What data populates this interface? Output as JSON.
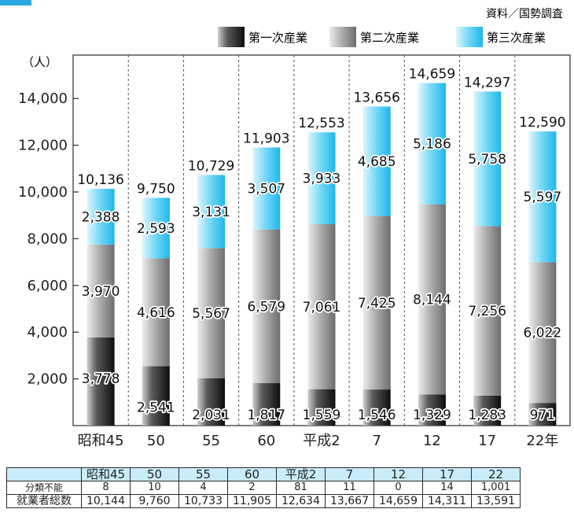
{
  "source_note": "資料／国勢調査",
  "legend": [
    "第一次産業",
    "第二次産業",
    "第三次産業"
  ],
  "y_unit": "（人）",
  "colors": {
    "primary_dark": "#1b1b1b",
    "secondary_gray": "#9c9c9c",
    "tertiary_cyan": "#3cc8f2",
    "table_header": "#c9ecf8",
    "header_accent": "#29a9e0"
  },
  "chart_data": {
    "type": "bar",
    "stacked": true,
    "categories": [
      "昭和45",
      "50",
      "55",
      "60",
      "平成2",
      "7",
      "12",
      "17",
      "22年"
    ],
    "series": [
      {
        "name": "第一次産業",
        "values": [
          3778,
          2541,
          2031,
          1817,
          1559,
          1546,
          1329,
          1283,
          971
        ]
      },
      {
        "name": "第二次産業",
        "values": [
          3970,
          4616,
          5567,
          6579,
          7061,
          7425,
          8144,
          7256,
          6022
        ]
      },
      {
        "name": "第三次産業",
        "values": [
          2388,
          2593,
          3131,
          3507,
          3933,
          4685,
          5186,
          5758,
          5597
        ]
      }
    ],
    "totals": [
      10136,
      9750,
      10729,
      11903,
      12553,
      13656,
      14659,
      14297,
      12590
    ],
    "value_labels": {
      "primary": [
        "3,778",
        "2,541",
        "2,031",
        "1,817",
        "1,559",
        "1,546",
        "1,329",
        "1,283",
        "971"
      ],
      "secondary": [
        "3,970",
        "4,616",
        "5,567",
        "6,579",
        "7,061",
        "7,425",
        "8,144",
        "7,256",
        "6,022"
      ],
      "tertiary": [
        "2,388",
        "2,593",
        "3,131",
        "3,507",
        "3,933",
        "4,685",
        "5,186",
        "5,758",
        "5,597"
      ],
      "totals": [
        "10,136",
        "9,750",
        "10,729",
        "11,903",
        "12,553",
        "13,656",
        "14,659",
        "14,297",
        "12,590"
      ]
    },
    "yticks": [
      2000,
      4000,
      6000,
      8000,
      10000,
      12000,
      14000
    ],
    "ytick_labels": [
      "2,000",
      "4,000",
      "6,000",
      "8,000",
      "10,000",
      "12,000",
      "14,000"
    ],
    "ylim": [
      0,
      16000
    ],
    "grid": "vertical dashed separators",
    "legend_position": "top-right"
  },
  "table": {
    "header": [
      "",
      "昭和45",
      "50",
      "55",
      "60",
      "平成2",
      "7",
      "12",
      "17",
      "22"
    ],
    "rows": [
      {
        "label": "分類不能",
        "values": [
          "8",
          "10",
          "4",
          "2",
          "81",
          "11",
          "0",
          "14",
          "1,001"
        ]
      },
      {
        "label": "就業者総数",
        "values": [
          "10,144",
          "9,760",
          "10,733",
          "11,905",
          "12,634",
          "13,667",
          "14,659",
          "14,311",
          "13,591"
        ]
      }
    ]
  }
}
